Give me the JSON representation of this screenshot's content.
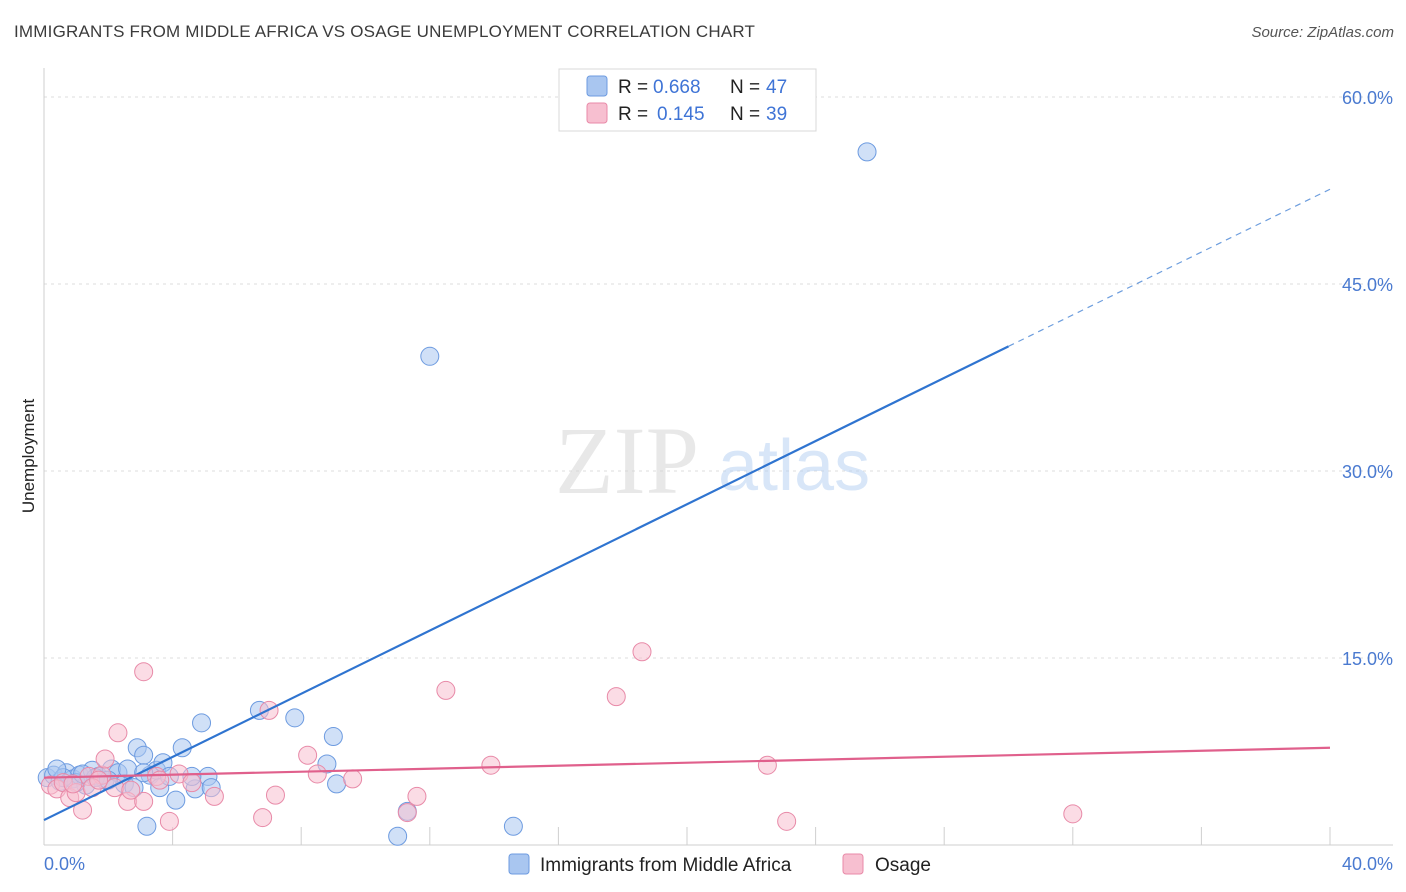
{
  "title": "IMMIGRANTS FROM MIDDLE AFRICA VS OSAGE UNEMPLOYMENT CORRELATION CHART",
  "source": "Source: ZipAtlas.com",
  "watermark": {
    "zip": "ZIP",
    "atlas": "atlas"
  },
  "legend": {
    "rows": [
      {
        "r_label": "R =",
        "r_value": "0.668",
        "n_label": "N =",
        "n_value": "47",
        "color": "#a9c6f0",
        "edge": "#6d9be0"
      },
      {
        "r_label": "R =",
        "r_value": "0.145",
        "n_label": "N =",
        "n_value": "39",
        "color": "#f7bfd0",
        "edge": "#e88aa8"
      }
    ]
  },
  "chart_data": {
    "type": "scatter",
    "title": "IMMIGRANTS FROM MIDDLE AFRICA VS OSAGE UNEMPLOYMENT CORRELATION CHART",
    "xlabel": "",
    "ylabel": "Unemployment",
    "xlim": [
      0,
      40
    ],
    "ylim": [
      0,
      60
    ],
    "x_tick_labels": [
      "0.0%",
      "40.0%"
    ],
    "y_ticks": [
      15,
      30,
      45,
      60
    ],
    "y_tick_labels": [
      "15.0%",
      "30.0%",
      "45.0%",
      "60.0%"
    ],
    "series": [
      {
        "name": "Immigrants from Middle Africa",
        "color": "#a9c6f0",
        "edge": "#6d9be0",
        "line_color": "#2f74d0",
        "trend": {
          "x0": 0,
          "y0": 2.0,
          "x1": 30.0,
          "y1": 40.0,
          "dash_to_x": 40.0,
          "dash_to_y": 52.6
        },
        "points": [
          [
            0.1,
            5.4
          ],
          [
            0.3,
            5.6
          ],
          [
            0.5,
            5.1
          ],
          [
            0.7,
            5.8
          ],
          [
            0.9,
            5.3
          ],
          [
            1.1,
            5.6
          ],
          [
            1.3,
            4.8
          ],
          [
            1.5,
            6.0
          ],
          [
            1.7,
            5.5
          ],
          [
            1.9,
            5.2
          ],
          [
            2.1,
            6.1
          ],
          [
            2.3,
            5.8
          ],
          [
            2.5,
            4.9
          ],
          [
            2.8,
            4.6
          ],
          [
            2.9,
            7.8
          ],
          [
            3.1,
            7.2
          ],
          [
            3.3,
            5.6
          ],
          [
            3.5,
            6.0
          ],
          [
            3.6,
            4.6
          ],
          [
            3.7,
            6.6
          ],
          [
            3.2,
            1.5
          ],
          [
            4.1,
            3.6
          ],
          [
            4.3,
            7.8
          ],
          [
            4.7,
            4.5
          ],
          [
            4.9,
            9.8
          ],
          [
            5.1,
            5.5
          ],
          [
            3.9,
            5.5
          ],
          [
            2.6,
            6.1
          ],
          [
            1.0,
            5.0
          ],
          [
            0.6,
            5.4
          ],
          [
            6.7,
            10.8
          ],
          [
            7.8,
            10.2
          ],
          [
            8.8,
            6.5
          ],
          [
            9.0,
            8.7
          ],
          [
            9.1,
            4.9
          ],
          [
            12.0,
            39.2
          ],
          [
            11.3,
            2.7
          ],
          [
            11.0,
            0.7
          ],
          [
            14.6,
            1.5
          ],
          [
            25.6,
            55.6
          ],
          [
            1.6,
            5.4
          ],
          [
            2.0,
            5.2
          ],
          [
            4.6,
            5.5
          ],
          [
            5.2,
            4.6
          ],
          [
            3.1,
            5.8
          ],
          [
            0.4,
            6.1
          ],
          [
            1.2,
            5.7
          ]
        ]
      },
      {
        "name": "Osage",
        "color": "#f7bfd0",
        "edge": "#e88aa8",
        "line_color": "#e0608c",
        "trend": {
          "x0": 0,
          "y0": 5.4,
          "x1": 40.0,
          "y1": 7.8
        },
        "points": [
          [
            0.2,
            4.8
          ],
          [
            0.4,
            4.5
          ],
          [
            0.6,
            5.0
          ],
          [
            0.8,
            3.8
          ],
          [
            1.0,
            4.2
          ],
          [
            1.2,
            2.8
          ],
          [
            1.4,
            5.5
          ],
          [
            1.8,
            5.6
          ],
          [
            1.9,
            6.9
          ],
          [
            2.2,
            4.6
          ],
          [
            2.3,
            9.0
          ],
          [
            2.6,
            3.5
          ],
          [
            3.1,
            3.5
          ],
          [
            3.1,
            13.9
          ],
          [
            3.5,
            5.5
          ],
          [
            3.9,
            1.9
          ],
          [
            4.2,
            5.7
          ],
          [
            5.3,
            3.9
          ],
          [
            6.8,
            2.2
          ],
          [
            7.0,
            10.8
          ],
          [
            7.2,
            4.0
          ],
          [
            8.2,
            7.2
          ],
          [
            8.5,
            5.7
          ],
          [
            9.6,
            5.3
          ],
          [
            11.3,
            2.6
          ],
          [
            11.6,
            3.9
          ],
          [
            12.5,
            12.4
          ],
          [
            13.9,
            6.4
          ],
          [
            17.8,
            11.9
          ],
          [
            18.6,
            15.5
          ],
          [
            22.5,
            6.4
          ],
          [
            23.1,
            1.9
          ],
          [
            32.0,
            2.5
          ],
          [
            1.5,
            4.6
          ],
          [
            2.7,
            4.4
          ],
          [
            0.9,
            4.9
          ],
          [
            3.6,
            5.2
          ],
          [
            4.6,
            5.0
          ],
          [
            1.7,
            5.2
          ]
        ]
      }
    ]
  }
}
